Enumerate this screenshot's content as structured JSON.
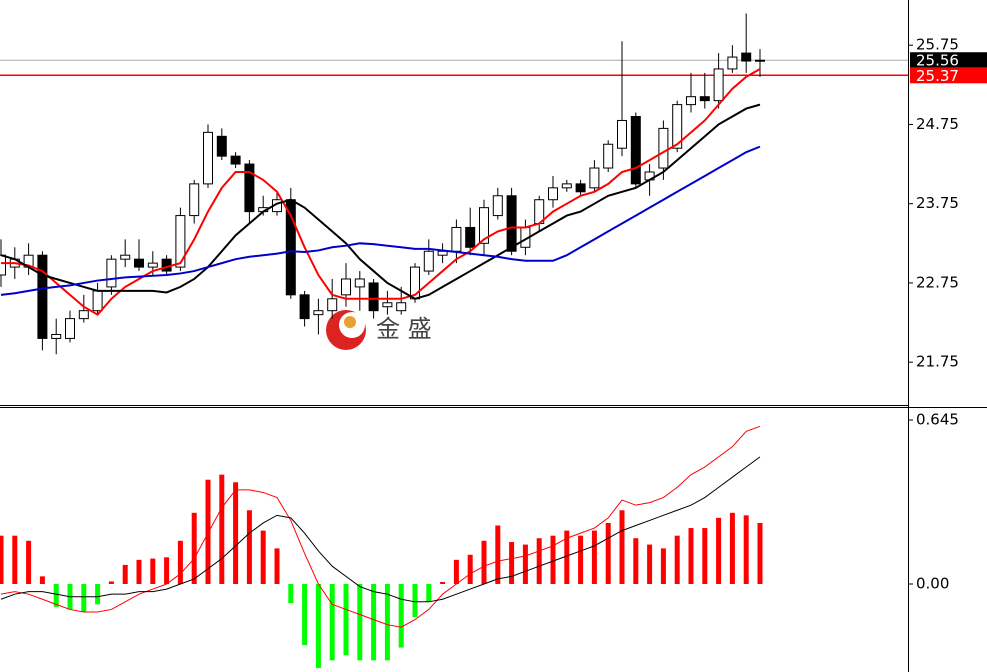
{
  "chart_data": [
    {
      "type": "candlestick",
      "open": [
        22.85,
        22.95,
        22.95,
        23.1,
        22.05,
        22.05,
        22.3,
        22.4,
        22.7,
        23.05,
        23.05,
        22.95,
        23.05,
        22.95,
        23.6,
        24.0,
        24.6,
        24.35,
        24.25,
        23.65,
        23.65,
        23.8,
        22.6,
        22.35,
        22.4,
        22.6,
        22.7,
        22.75,
        22.45,
        22.4,
        22.55,
        22.9,
        23.1,
        23.15,
        23.45,
        23.25,
        23.6,
        23.85,
        23.2,
        23.5,
        23.8,
        23.95,
        24.0,
        23.95,
        24.2,
        24.45,
        24.85,
        24.05,
        24.2,
        24.45,
        25.0,
        25.1,
        25.05,
        25.45,
        25.65,
        25.55
      ],
      "high": [
        23.3,
        23.2,
        23.25,
        23.15,
        22.3,
        22.4,
        22.6,
        22.75,
        23.1,
        23.3,
        23.3,
        23.15,
        23.1,
        23.7,
        24.05,
        24.75,
        24.7,
        24.4,
        24.3,
        23.85,
        23.9,
        23.95,
        22.65,
        22.55,
        22.8,
        23.0,
        22.9,
        22.8,
        22.65,
        22.7,
        23.0,
        23.3,
        23.25,
        23.55,
        23.7,
        23.8,
        23.95,
        23.95,
        23.55,
        23.85,
        24.1,
        24.05,
        24.05,
        24.3,
        24.55,
        25.8,
        24.9,
        24.25,
        24.8,
        25.05,
        25.4,
        25.4,
        25.65,
        25.75,
        26.15,
        25.7
      ],
      "low": [
        22.7,
        22.8,
        22.85,
        21.9,
        21.85,
        22.0,
        22.25,
        22.35,
        22.6,
        22.95,
        22.9,
        22.85,
        22.85,
        22.9,
        23.5,
        23.95,
        24.3,
        24.2,
        23.5,
        23.6,
        23.6,
        22.55,
        22.2,
        22.1,
        22.3,
        22.45,
        22.4,
        22.3,
        22.35,
        22.35,
        22.5,
        22.85,
        23.0,
        23.0,
        23.1,
        23.1,
        23.55,
        23.1,
        23.1,
        23.4,
        23.7,
        23.9,
        23.85,
        23.9,
        24.15,
        24.35,
        23.95,
        23.85,
        24.05,
        24.4,
        24.9,
        24.95,
        24.95,
        25.4,
        25.4,
        25.35
      ],
      "close": [
        23.1,
        23.05,
        23.1,
        22.05,
        22.1,
        22.3,
        22.4,
        22.65,
        23.05,
        23.1,
        22.95,
        23.0,
        22.9,
        23.6,
        24.0,
        24.65,
        24.35,
        24.25,
        23.65,
        23.7,
        23.8,
        22.6,
        22.3,
        22.4,
        22.55,
        22.8,
        22.8,
        22.4,
        22.5,
        22.5,
        22.95,
        23.15,
        23.15,
        23.45,
        23.2,
        23.7,
        23.85,
        23.15,
        23.45,
        23.8,
        23.95,
        24.0,
        23.9,
        24.2,
        24.5,
        24.8,
        24.0,
        24.15,
        24.7,
        25.0,
        25.1,
        25.05,
        25.45,
        25.6,
        25.55,
        25.56
      ],
      "overlays": [
        {
          "color": "#ff0000",
          "values": [
            23.0,
            23.0,
            22.97,
            22.9,
            22.75,
            22.6,
            22.45,
            22.35,
            22.55,
            22.7,
            22.8,
            22.9,
            22.95,
            23.0,
            23.3,
            23.65,
            23.95,
            24.15,
            24.15,
            24.05,
            23.9,
            23.6,
            23.2,
            22.85,
            22.6,
            22.55,
            22.55,
            22.55,
            22.55,
            22.55,
            22.6,
            22.75,
            22.9,
            23.05,
            23.15,
            23.3,
            23.4,
            23.45,
            23.45,
            23.5,
            23.65,
            23.75,
            23.85,
            23.9,
            24.0,
            24.15,
            24.2,
            24.3,
            24.4,
            24.5,
            24.65,
            24.8,
            25.0,
            25.2,
            25.35,
            25.45
          ]
        },
        {
          "color": "#000000",
          "values": [
            23.1,
            23.05,
            22.95,
            22.85,
            22.8,
            22.75,
            22.7,
            22.65,
            22.65,
            22.65,
            22.65,
            22.65,
            22.63,
            22.7,
            22.8,
            22.95,
            23.15,
            23.35,
            23.5,
            23.65,
            23.75,
            23.8,
            23.7,
            23.55,
            23.4,
            23.25,
            23.05,
            22.9,
            22.75,
            22.65,
            22.55,
            22.6,
            22.7,
            22.8,
            22.9,
            23.0,
            23.1,
            23.2,
            23.3,
            23.4,
            23.5,
            23.6,
            23.65,
            23.75,
            23.85,
            23.9,
            23.95,
            24.05,
            24.15,
            24.3,
            24.45,
            24.6,
            24.75,
            24.85,
            24.95,
            25.0
          ]
        },
        {
          "color": "#0000cc",
          "values": [
            22.6,
            22.62,
            22.65,
            22.68,
            22.7,
            22.72,
            22.75,
            22.78,
            22.8,
            22.82,
            22.83,
            22.84,
            22.85,
            22.87,
            22.9,
            22.95,
            23.0,
            23.05,
            23.08,
            23.1,
            23.12,
            23.15,
            23.14,
            23.16,
            23.2,
            23.22,
            23.25,
            23.24,
            23.22,
            23.2,
            23.18,
            23.18,
            23.16,
            23.14,
            23.12,
            23.1,
            23.08,
            23.05,
            23.03,
            23.03,
            23.03,
            23.1,
            23.2,
            23.3,
            23.4,
            23.5,
            23.6,
            23.7,
            23.8,
            23.9,
            24.0,
            24.1,
            24.2,
            24.3,
            24.4,
            24.47
          ]
        }
      ],
      "markers": [
        {
          "value": 25.56,
          "color": "#000000"
        },
        {
          "value": 25.37,
          "color": "#ff0000"
        }
      ],
      "watermark": "金 盛",
      "ylim": [
        21.21,
        26.32
      ],
      "yticks": [
        21.75,
        22.75,
        23.75,
        24.75,
        25.75
      ]
    },
    {
      "type": "macd",
      "histogram": {
        "color_up": "#ff0000",
        "color_down": "#00ff00",
        "values": [
          0.19,
          0.19,
          0.17,
          0.03,
          -0.09,
          -0.1,
          -0.11,
          -0.08,
          0.01,
          0.075,
          0.095,
          0.1,
          0.105,
          0.17,
          0.28,
          0.41,
          0.43,
          0.4,
          0.29,
          0.21,
          0.14,
          -0.075,
          -0.24,
          -0.33,
          -0.3,
          -0.28,
          -0.3,
          -0.3,
          -0.3,
          -0.25,
          -0.13,
          -0.07,
          0.008,
          0.095,
          0.115,
          0.17,
          0.23,
          0.165,
          0.155,
          0.18,
          0.19,
          0.21,
          0.19,
          0.21,
          0.24,
          0.29,
          0.18,
          0.155,
          0.14,
          0.19,
          0.22,
          0.22,
          0.26,
          0.28,
          0.27,
          0.24
        ]
      },
      "lines": [
        {
          "color": "#ff0000",
          "values": [
            -0.04,
            -0.03,
            -0.04,
            -0.06,
            -0.08,
            -0.1,
            -0.11,
            -0.11,
            -0.1,
            -0.07,
            -0.04,
            -0.02,
            0.0,
            0.04,
            0.1,
            0.2,
            0.3,
            0.37,
            0.37,
            0.36,
            0.34,
            0.25,
            0.12,
            0.0,
            -0.08,
            -0.1,
            -0.12,
            -0.14,
            -0.16,
            -0.17,
            -0.14,
            -0.1,
            -0.04,
            0.0,
            0.04,
            0.07,
            0.09,
            0.1,
            0.11,
            0.13,
            0.15,
            0.18,
            0.2,
            0.22,
            0.26,
            0.33,
            0.31,
            0.32,
            0.34,
            0.38,
            0.43,
            0.46,
            0.5,
            0.54,
            0.6,
            0.62
          ]
        },
        {
          "color": "#000000",
          "values": [
            -0.06,
            -0.04,
            -0.03,
            -0.03,
            -0.04,
            -0.05,
            -0.05,
            -0.05,
            -0.04,
            -0.04,
            -0.03,
            -0.03,
            -0.02,
            0.0,
            0.02,
            0.06,
            0.1,
            0.15,
            0.2,
            0.24,
            0.27,
            0.26,
            0.2,
            0.13,
            0.07,
            0.03,
            -0.01,
            -0.03,
            -0.04,
            -0.06,
            -0.07,
            -0.07,
            -0.06,
            -0.04,
            -0.02,
            0.0,
            0.02,
            0.03,
            0.05,
            0.07,
            0.09,
            0.11,
            0.13,
            0.15,
            0.18,
            0.21,
            0.23,
            0.25,
            0.27,
            0.29,
            0.31,
            0.34,
            0.38,
            0.42,
            0.46,
            0.5
          ]
        }
      ],
      "ylim": [
        -0.346,
        0.696
      ],
      "yticks": [
        0.645,
        {
          "value": 0,
          "label": "0.00"
        }
      ]
    }
  ]
}
